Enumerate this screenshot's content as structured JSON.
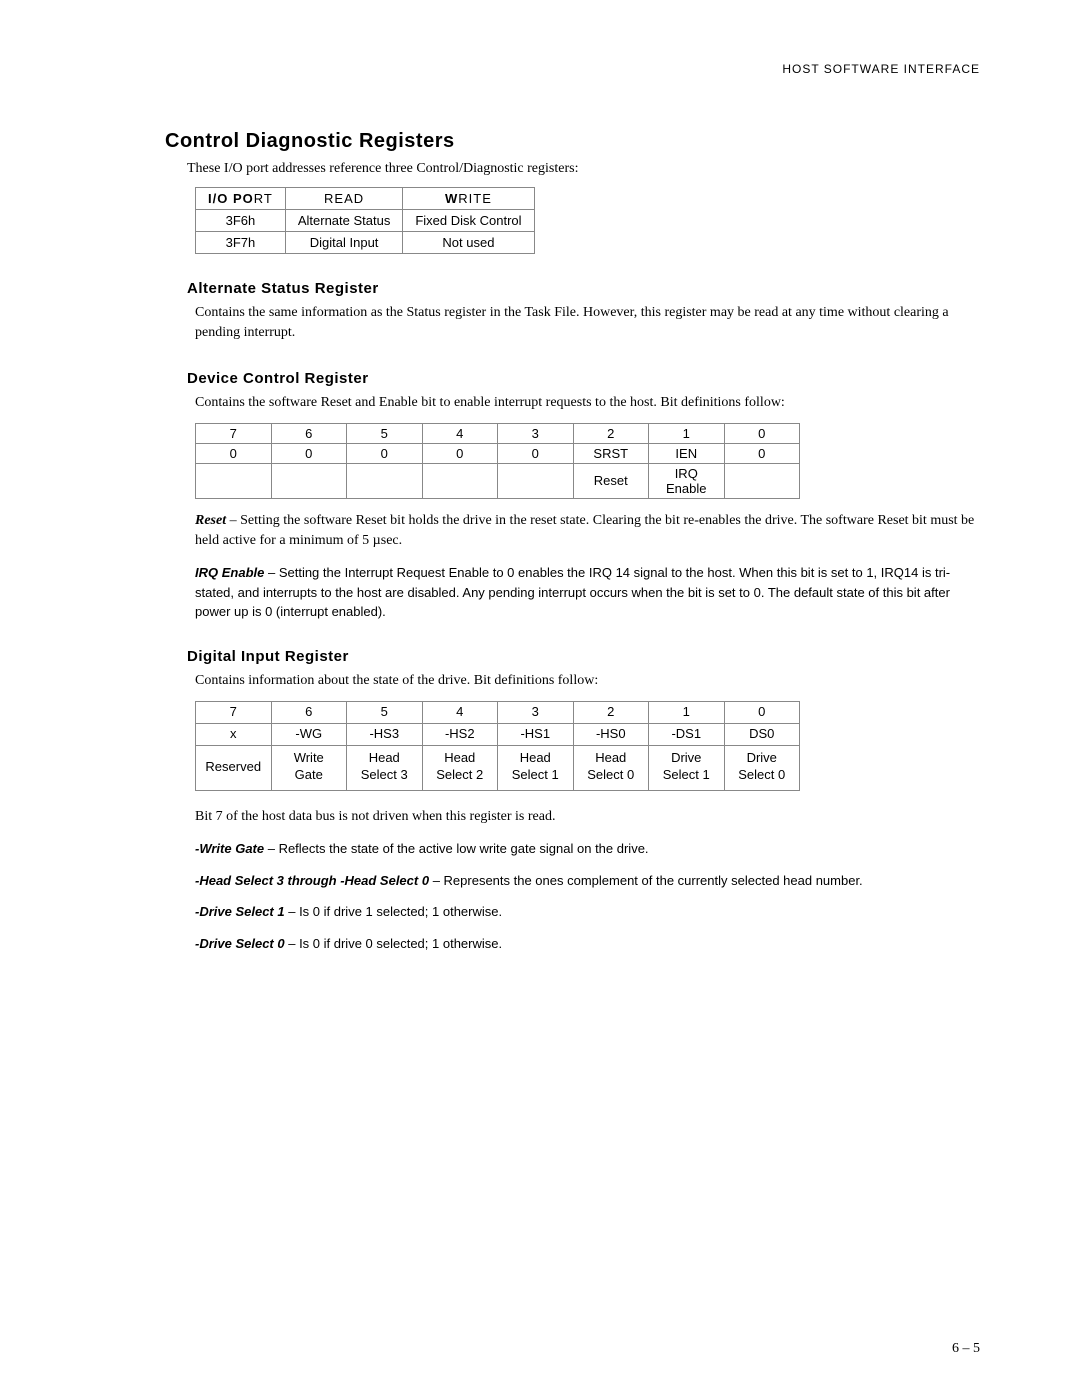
{
  "header": "HOST SOFTWARE INTERFACE",
  "page_number": "6 – 5",
  "section_title": "Control Diagnostic Registers",
  "intro": "These I/O port addresses reference three Control/Diagnostic registers:",
  "ioport_table": {
    "columns": [
      "I/O PORT",
      "READ",
      "WRITE"
    ],
    "rows": [
      [
        "3F6h",
        "Alternate Status",
        "Fixed Disk Control"
      ],
      [
        "3F7h",
        "Digital Input",
        "Not used"
      ]
    ]
  },
  "alt_status": {
    "title": "Alternate Status Register",
    "text": "Contains the same information as the Status register in the Task File. However, this register may be read at any time without clearing a pending interrupt."
  },
  "dev_ctrl": {
    "title": "Device Control Register",
    "text": "Contains the software Reset and Enable bit to enable interrupt requests to the host. Bit definitions follow:",
    "bits_header": [
      "7",
      "6",
      "5",
      "4",
      "3",
      "2",
      "1",
      "0"
    ],
    "bits_values": [
      "0",
      "0",
      "0",
      "0",
      "0",
      "SRST",
      "IEN",
      "0"
    ],
    "bits_labels": [
      "",
      "",
      "",
      "",
      "",
      "Reset",
      "IRQ Enable",
      ""
    ],
    "reset_term": "Reset",
    "reset_text": " – Setting the software Reset bit holds the drive in the reset state. Clearing the bit re-enables the drive. The software Reset bit must be held active for a minimum of 5 µsec.",
    "irq_term": "IRQ Enable",
    "irq_text": " – Setting the Interrupt Request Enable to 0 enables the IRQ 14 signal to the host. When this bit is set to 1, IRQ14 is tri-stated, and interrupts to the host are disabled. Any pending interrupt occurs when the bit is set to 0. The default state of this bit after power up is 0 (interrupt enabled)."
  },
  "dig_in": {
    "title": "Digital Input Register",
    "text": "Contains information about the state of the drive. Bit definitions follow:",
    "bits_header": [
      "7",
      "6",
      "5",
      "4",
      "3",
      "2",
      "1",
      "0"
    ],
    "bits_values": [
      "x",
      "-WG",
      "-HS3",
      "-HS2",
      "-HS1",
      "-HS0",
      "-DS1",
      "DS0"
    ],
    "bits_labels": [
      "Reserved",
      "Write\nGate",
      "Head\nSelect 3",
      "Head\nSelect 2",
      "Head\nSelect 1",
      "Head\nSelect 0",
      "Drive\nSelect 1",
      "Drive\nSelect 0"
    ],
    "note": "Bit 7 of the host data bus is not driven when this register is read.",
    "defs": [
      {
        "term": "-Write Gate",
        "text": " – Reflects the state of the active low write gate signal on the drive."
      },
      {
        "term": "-Head Select 3 through -Head Select 0",
        "text": " – Represents the ones complement of the currently selected head number."
      },
      {
        "term": "-Drive Select 1",
        "text": " – Is 0 if drive 1 selected; 1 otherwise."
      },
      {
        "term": "-Drive Select 0",
        "text": " – Is 0 if drive 0 selected; 1 otherwise."
      }
    ]
  }
}
